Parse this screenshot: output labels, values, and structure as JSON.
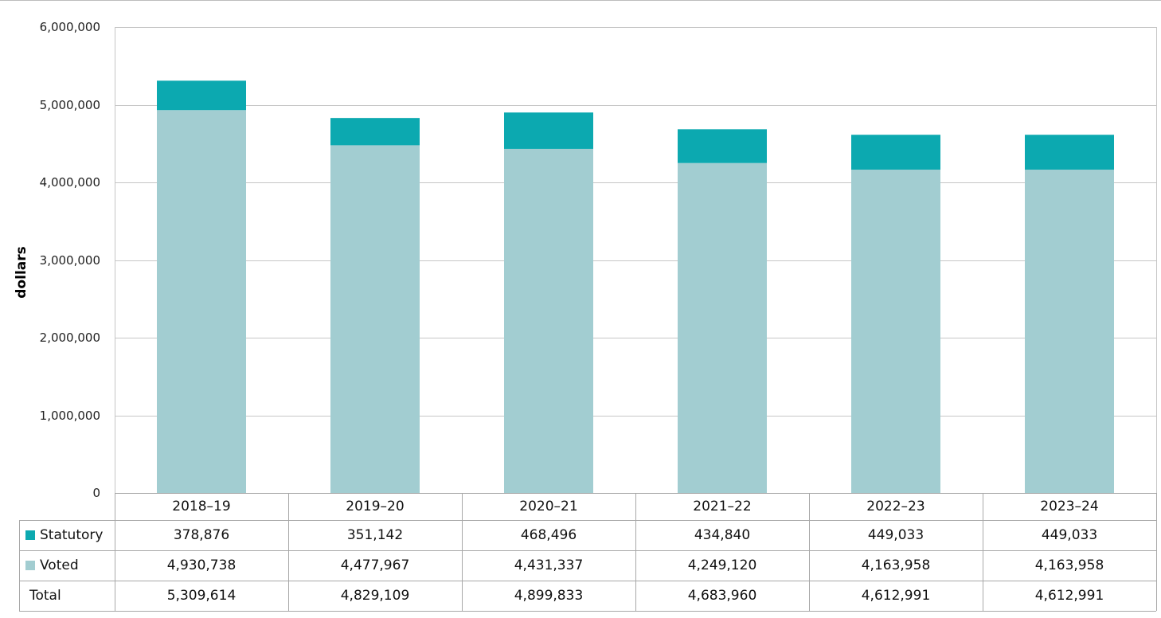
{
  "chart_data": {
    "type": "bar",
    "stacked": true,
    "ylabel": "dollars",
    "ylim": [
      0,
      6000000
    ],
    "yticks": [
      "0",
      "1,000,000",
      "2,000,000",
      "3,000,000",
      "4,000,000",
      "5,000,000",
      "6,000,000"
    ],
    "categories": [
      "2018–19",
      "2019–20",
      "2020–21",
      "2021–22",
      "2022–23",
      "2023–24"
    ],
    "series": [
      {
        "name": "Voted",
        "color": "#a2cdd1",
        "values": [
          4930738,
          4477967,
          4431337,
          4249120,
          4163958,
          4163958
        ],
        "labels": [
          "4,930,738",
          "4,477,967",
          "4,431,337",
          "4,249,120",
          "4,163,958",
          "4,163,958"
        ]
      },
      {
        "name": "Statutory",
        "color": "#0ca9b0",
        "values": [
          378876,
          351142,
          468496,
          434840,
          449033,
          449033
        ],
        "labels": [
          "378,876",
          "351,142",
          "468,496",
          "434,840",
          "449,033",
          "449,033"
        ]
      }
    ],
    "total": {
      "name": "Total",
      "labels": [
        "5,309,614",
        "4,829,109",
        "4,899,833",
        "4,683,960",
        "4,612,991",
        "4,612,991"
      ]
    },
    "grid": true,
    "legend": "data-table"
  }
}
